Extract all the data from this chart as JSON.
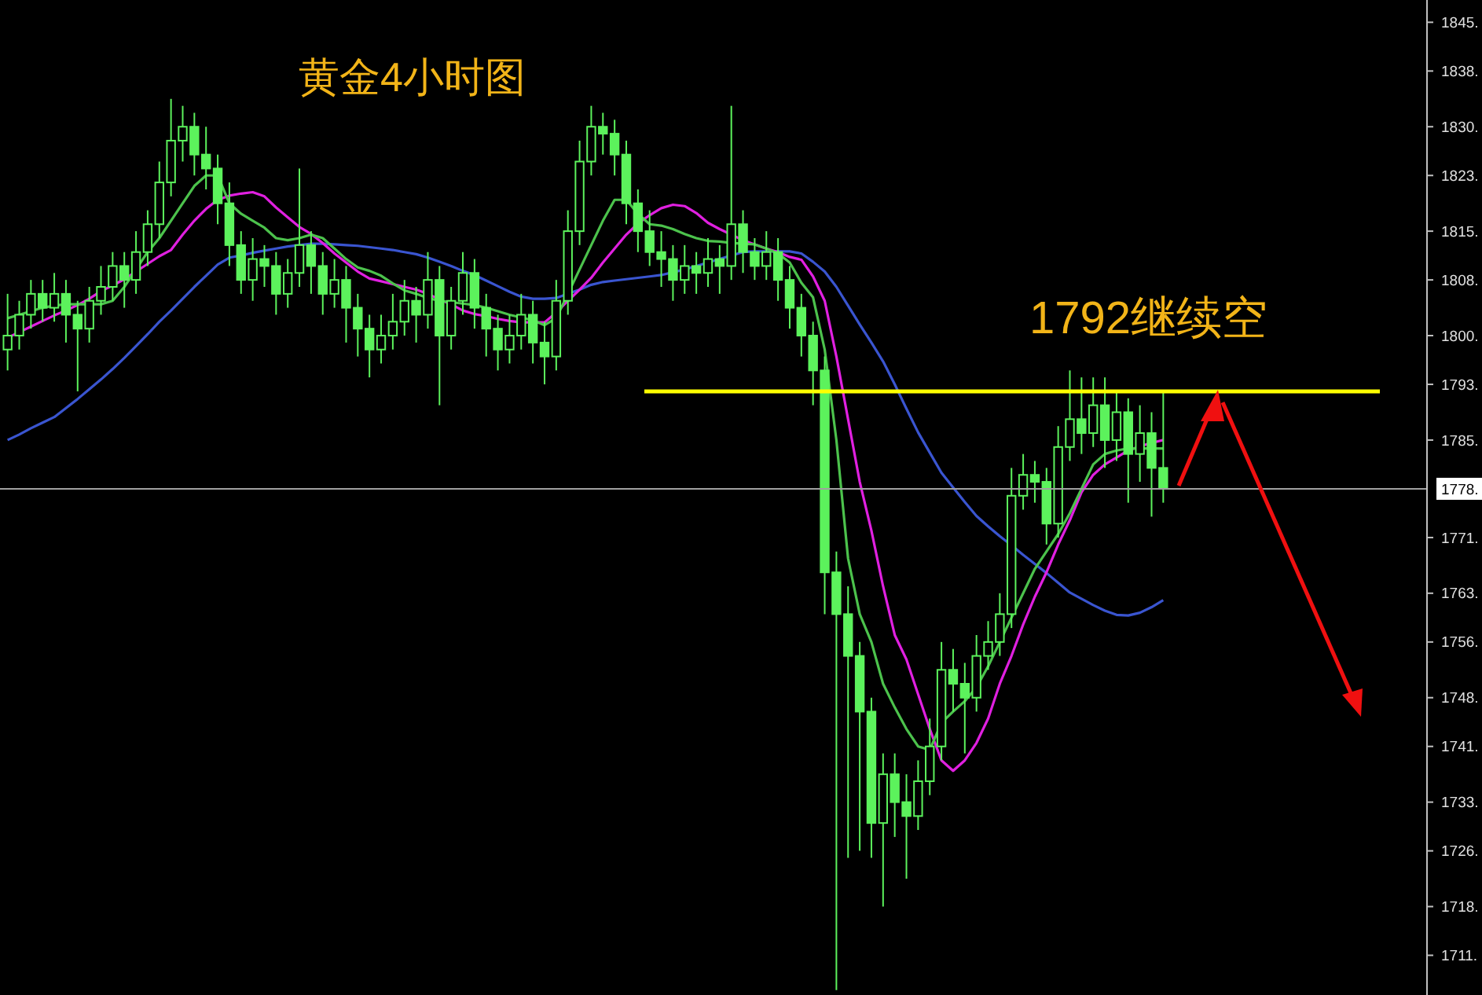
{
  "chart_data": {
    "type": "candlestick",
    "title": "黄金4小时图",
    "annotations": [
      "1792继续空"
    ],
    "color": "#5cf25c",
    "categories": [
      null,
      null,
      null,
      null,
      null,
      null,
      null,
      null,
      null,
      null,
      null,
      null,
      null,
      null,
      null,
      null,
      null,
      null,
      null,
      null,
      null,
      null,
      null,
      null,
      null,
      null,
      null,
      null,
      null,
      null,
      null,
      null,
      null,
      null,
      null,
      null,
      null,
      null,
      null,
      null,
      null,
      null,
      null,
      null,
      null,
      null,
      null,
      null,
      null,
      null,
      null,
      null,
      null,
      null,
      null,
      null,
      null,
      null,
      null,
      null,
      null,
      null,
      null,
      null,
      null,
      null,
      null,
      null,
      null,
      null,
      null,
      null,
      null,
      null,
      null,
      null,
      null,
      null,
      null,
      null,
      null,
      null,
      null,
      null,
      null,
      null,
      null,
      null,
      null,
      null,
      null,
      null,
      null,
      null,
      null,
      null,
      null,
      null,
      null,
      null
    ],
    "ohlc": [
      [
        1798,
        1806,
        1795,
        1800
      ],
      [
        1800,
        1805,
        1798,
        1803
      ],
      [
        1803,
        1808,
        1801,
        1806
      ],
      [
        1806,
        1808,
        1802,
        1804
      ],
      [
        1804,
        1809,
        1802,
        1806
      ],
      [
        1806,
        1808,
        1799,
        1803
      ],
      [
        1803,
        1805,
        1792,
        1801
      ],
      [
        1801,
        1807,
        1799,
        1805
      ],
      [
        1805,
        1810,
        1803,
        1807
      ],
      [
        1807,
        1812,
        1805,
        1810
      ],
      [
        1810,
        1812,
        1804,
        1808
      ],
      [
        1808,
        1815,
        1806,
        1812
      ],
      [
        1812,
        1818,
        1810,
        1816
      ],
      [
        1816,
        1825,
        1814,
        1822
      ],
      [
        1822,
        1834,
        1820,
        1828
      ],
      [
        1828,
        1833,
        1825,
        1830
      ],
      [
        1830,
        1832,
        1823,
        1826
      ],
      [
        1826,
        1830,
        1821,
        1824
      ],
      [
        1824,
        1826,
        1816,
        1819
      ],
      [
        1819,
        1822,
        1810,
        1813
      ],
      [
        1813,
        1815,
        1806,
        1808
      ],
      [
        1808,
        1814,
        1805,
        1811
      ],
      [
        1811,
        1813,
        1807,
        1810
      ],
      [
        1810,
        1812,
        1803,
        1806
      ],
      [
        1806,
        1811,
        1804,
        1809
      ],
      [
        1809,
        1824,
        1807,
        1813
      ],
      [
        1813,
        1815,
        1806,
        1810
      ],
      [
        1810,
        1812,
        1803,
        1806
      ],
      [
        1806,
        1811,
        1804,
        1808
      ],
      [
        1808,
        1810,
        1799,
        1804
      ],
      [
        1804,
        1806,
        1797,
        1801
      ],
      [
        1801,
        1803,
        1794,
        1798
      ],
      [
        1798,
        1803,
        1796,
        1800
      ],
      [
        1800,
        1806,
        1798,
        1802
      ],
      [
        1802,
        1808,
        1800,
        1805
      ],
      [
        1805,
        1807,
        1799,
        1803
      ],
      [
        1803,
        1812,
        1801,
        1808
      ],
      [
        1808,
        1810,
        1790,
        1800
      ],
      [
        1800,
        1807,
        1798,
        1805
      ],
      [
        1805,
        1812,
        1803,
        1809
      ],
      [
        1809,
        1811,
        1801,
        1804
      ],
      [
        1804,
        1806,
        1797,
        1801
      ],
      [
        1801,
        1803,
        1795,
        1798
      ],
      [
        1798,
        1803,
        1796,
        1800
      ],
      [
        1800,
        1806,
        1798,
        1803
      ],
      [
        1803,
        1805,
        1796,
        1799
      ],
      [
        1799,
        1802,
        1793,
        1797
      ],
      [
        1797,
        1808,
        1795,
        1805
      ],
      [
        1805,
        1818,
        1803,
        1815
      ],
      [
        1815,
        1828,
        1813,
        1825
      ],
      [
        1825,
        1833,
        1823,
        1830
      ],
      [
        1830,
        1832,
        1826,
        1829
      ],
      [
        1829,
        1831,
        1823,
        1826
      ],
      [
        1826,
        1828,
        1816,
        1819
      ],
      [
        1819,
        1821,
        1812,
        1815
      ],
      [
        1815,
        1818,
        1810,
        1812
      ],
      [
        1812,
        1815,
        1807,
        1811
      ],
      [
        1811,
        1813,
        1805,
        1808
      ],
      [
        1808,
        1813,
        1806,
        1810
      ],
      [
        1810,
        1812,
        1806,
        1809
      ],
      [
        1809,
        1814,
        1807,
        1811
      ],
      [
        1811,
        1813,
        1806,
        1810
      ],
      [
        1810,
        1833,
        1808,
        1816
      ],
      [
        1816,
        1818,
        1809,
        1812
      ],
      [
        1812,
        1814,
        1808,
        1810
      ],
      [
        1810,
        1815,
        1808,
        1812
      ],
      [
        1812,
        1814,
        1805,
        1808
      ],
      [
        1808,
        1810,
        1801,
        1804
      ],
      [
        1804,
        1806,
        1797,
        1800
      ],
      [
        1800,
        1802,
        1790,
        1795
      ],
      [
        1795,
        1797,
        1760,
        1766
      ],
      [
        1766,
        1769,
        1706,
        1760
      ],
      [
        1760,
        1764,
        1725,
        1754
      ],
      [
        1754,
        1756,
        1726,
        1746
      ],
      [
        1746,
        1748,
        1725,
        1730
      ],
      [
        1730,
        1740,
        1718,
        1737
      ],
      [
        1737,
        1740,
        1728,
        1733
      ],
      [
        1733,
        1737,
        1722,
        1731
      ],
      [
        1731,
        1739,
        1729,
        1736
      ],
      [
        1736,
        1745,
        1734,
        1741
      ],
      [
        1741,
        1756,
        1739,
        1752
      ],
      [
        1752,
        1755,
        1746,
        1750
      ],
      [
        1750,
        1753,
        1740,
        1748
      ],
      [
        1748,
        1757,
        1746,
        1754
      ],
      [
        1754,
        1759,
        1752,
        1756
      ],
      [
        1756,
        1763,
        1754,
        1760
      ],
      [
        1760,
        1781,
        1758,
        1777
      ],
      [
        1777,
        1783,
        1775,
        1780
      ],
      [
        1780,
        1782,
        1776,
        1779
      ],
      [
        1779,
        1781,
        1770,
        1773
      ],
      [
        1773,
        1787,
        1771,
        1784
      ],
      [
        1784,
        1795,
        1782,
        1788
      ],
      [
        1788,
        1794,
        1783,
        1786
      ],
      [
        1786,
        1794,
        1784,
        1790
      ],
      [
        1790,
        1794,
        1781,
        1785
      ],
      [
        1785,
        1792,
        1782,
        1789
      ],
      [
        1789,
        1791,
        1776,
        1783
      ],
      [
        1783,
        1790,
        1779,
        1786
      ],
      [
        1786,
        1789,
        1774,
        1781
      ],
      [
        1781,
        1792,
        1776,
        1778
      ]
    ],
    "series": [
      {
        "type": "line",
        "color": "#3a55d0",
        "values": [
          1785,
          1785.8,
          1786.7,
          1787.5,
          1788.3,
          1789.6,
          1790.9,
          1792.3,
          1793.7,
          1795.2,
          1796.8,
          1798.5,
          1800.2,
          1802,
          1803.6,
          1805.3,
          1807,
          1808.6,
          1810.2,
          1811.2,
          1811.5,
          1811.9,
          1812.2,
          1812.5,
          1812.8,
          1813,
          1813.2,
          1813.2,
          1813.1,
          1813,
          1812.9,
          1812.7,
          1812.5,
          1812.3,
          1812,
          1811.7,
          1811.2,
          1810.6,
          1810,
          1809.3,
          1808.7,
          1807.9,
          1807.1,
          1806.3,
          1805.6,
          1805.3,
          1805.3,
          1805.4,
          1806,
          1806.6,
          1807.3,
          1807.7,
          1807.9,
          1808.1,
          1808.3,
          1808.5,
          1808.7,
          1809.1,
          1809.5,
          1810,
          1810.5,
          1811,
          1811.5,
          1812,
          1812.1,
          1812.1,
          1812.1,
          1812.1,
          1811.8,
          1810.6,
          1809.2,
          1807,
          1804.3,
          1801.6,
          1799,
          1796.3,
          1793,
          1789.5,
          1786.1,
          1783.2,
          1780.3,
          1778.2,
          1776.1,
          1774.1,
          1772.6,
          1771.2,
          1769.9,
          1768.5,
          1767.2,
          1765.9,
          1764.5,
          1763.1,
          1762.2,
          1761.3,
          1760.5,
          1759.9,
          1759.8,
          1760.2,
          1761,
          1762
        ]
      },
      {
        "type": "line",
        "color": "#e020e0",
        "values": [
          1799.7,
          1800.5,
          1801.3,
          1802.1,
          1802.9,
          1803.6,
          1804.4,
          1805.3,
          1806.4,
          1807.2,
          1808.1,
          1809.2,
          1810.3,
          1811.4,
          1812.3,
          1814.5,
          1816.5,
          1818.2,
          1819.5,
          1820.1,
          1820.4,
          1820.6,
          1820,
          1818.4,
          1817,
          1815.6,
          1814.6,
          1813.3,
          1811.8,
          1810.5,
          1809.2,
          1808.2,
          1807.8,
          1807.4,
          1807,
          1806.6,
          1806,
          1805.2,
          1804.5,
          1803.6,
          1803.1,
          1802.8,
          1802.4,
          1802.1,
          1801.9,
          1801.9,
          1801.9,
          1803.3,
          1805,
          1806.6,
          1808.3,
          1810.5,
          1812.5,
          1814.5,
          1816.1,
          1817.3,
          1818.3,
          1818.8,
          1818.6,
          1817.6,
          1816.2,
          1815.3,
          1814.5,
          1813.7,
          1813.1,
          1812.5,
          1812,
          1811.3,
          1810.9,
          1808.5,
          1805,
          1797,
          1788,
          1779,
          1772,
          1764,
          1757,
          1753.5,
          1748.5,
          1743.5,
          1739,
          1737.5,
          1739,
          1741.5,
          1745,
          1750,
          1754,
          1758.5,
          1762.5,
          1766,
          1770,
          1773.5,
          1777.5,
          1780,
          1781.5,
          1782.5,
          1783.5,
          1784.1,
          1784.6,
          1785
        ]
      },
      {
        "type": "line",
        "color": "#4cc24c",
        "values": [
          1802.5,
          1803,
          1803.5,
          1804,
          1804.3,
          1804.5,
          1804.5,
          1804.5,
          1804.5,
          1805,
          1807,
          1809.5,
          1812,
          1814,
          1816.5,
          1819,
          1821.5,
          1823,
          1823,
          1819,
          1817.5,
          1816.5,
          1815.5,
          1814,
          1813.7,
          1814,
          1814.5,
          1814,
          1812.5,
          1811,
          1809.8,
          1809.3,
          1808.6,
          1807.5,
          1806.5,
          1806,
          1805.4,
          1805,
          1804.8,
          1804.6,
          1804.4,
          1804,
          1803.5,
          1803,
          1802.6,
          1802.2,
          1801.5,
          1802.5,
          1806,
          1809.5,
          1813,
          1816.5,
          1819.5,
          1819.5,
          1817.5,
          1816,
          1815.8,
          1815.3,
          1814.6,
          1814,
          1813.6,
          1813.5,
          1813.3,
          1813.2,
          1813.1,
          1812.5,
          1811.8,
          1810.5,
          1807.6,
          1805.5,
          1798,
          1785,
          1768,
          1760,
          1756,
          1750,
          1746.6,
          1743.5,
          1741,
          1740.5,
          1744.4,
          1746,
          1747.5,
          1749.5,
          1752.5,
          1756,
          1759.5,
          1763,
          1766.5,
          1769,
          1771.5,
          1774.5,
          1778,
          1781.5,
          1783,
          1783.5,
          1783.8,
          1783.8,
          1783.8,
          1783.8
        ]
      }
    ],
    "ylim": [
      1705.3,
      1848.2
    ],
    "yticks": [
      {
        "value": 1711,
        "label": "1711."
      },
      {
        "value": 1718,
        "label": "1718."
      },
      {
        "value": 1726,
        "label": "1726."
      },
      {
        "value": 1733,
        "label": "1733."
      },
      {
        "value": 1741,
        "label": "1741."
      },
      {
        "value": 1748,
        "label": "1748."
      },
      {
        "value": 1756,
        "label": "1756."
      },
      {
        "value": 1763,
        "label": "1763."
      },
      {
        "value": 1771,
        "label": "1771."
      },
      {
        "value": 1785,
        "label": "1785."
      },
      {
        "value": 1793,
        "label": "1793."
      },
      {
        "value": 1800,
        "label": "1800."
      },
      {
        "value": 1808,
        "label": "1808."
      },
      {
        "value": 1815,
        "label": "1815."
      },
      {
        "value": 1823,
        "label": "1823."
      },
      {
        "value": 1830,
        "label": "1830."
      },
      {
        "value": 1838,
        "label": "1838."
      },
      {
        "value": 1845,
        "label": "1845."
      }
    ],
    "ref_lines": [
      {
        "axis": "y",
        "value": 1792,
        "color": "#ffff00"
      },
      {
        "axis": "y",
        "value": 1778,
        "label": "1778.",
        "color": "#a0a0a0"
      }
    ],
    "tick_labels": "y",
    "grid": false
  }
}
